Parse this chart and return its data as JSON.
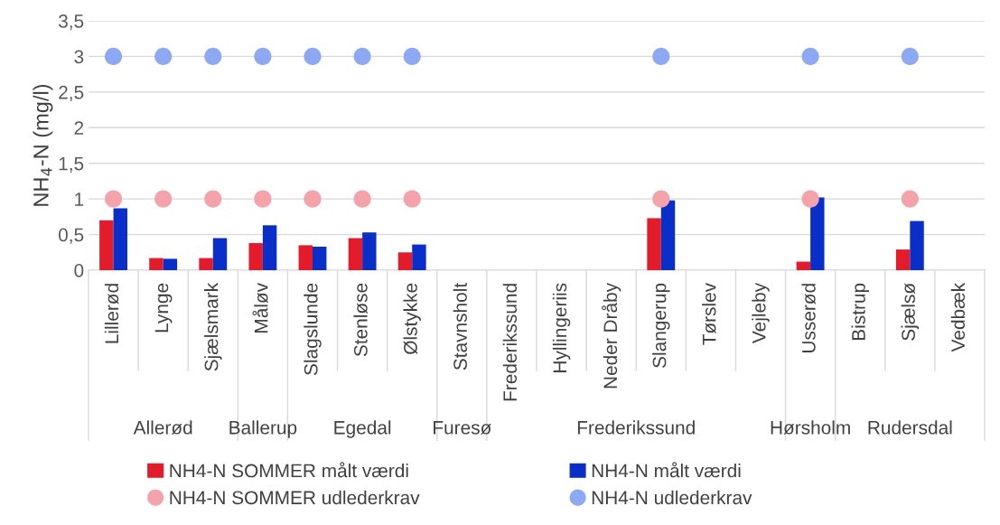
{
  "chart_data": {
    "type": "bar",
    "ylabel": "NH$_{4}$-N (mg/l)",
    "categories": [
      "Lillerød",
      "Lynge",
      "Sjælsmark",
      "Måløv",
      "Slagslunde",
      "Stenløse",
      "Ølstykke",
      "Stavnsholt",
      "Frederikssund",
      "Hyllingeriis",
      "Neder Dråby",
      "Slangerup",
      "Tørslev",
      "Vejleby",
      "Usserød",
      "Bistrup",
      "Sjælsø",
      "Vedbæk"
    ],
    "series": [
      {
        "name": "NH4-N SOMMER målt værdi",
        "color": "#e31b2b",
        "values": [
          0.7,
          0.17,
          0.17,
          0.38,
          0.35,
          0.45,
          0.25,
          null,
          null,
          null,
          null,
          0.73,
          null,
          null,
          0.12,
          null,
          0.29,
          null
        ]
      },
      {
        "name": "NH4-N målt værdi",
        "color": "#0a2fc8",
        "values": [
          0.87,
          0.16,
          0.45,
          0.63,
          0.33,
          0.53,
          0.36,
          null,
          null,
          null,
          null,
          0.98,
          null,
          null,
          1.02,
          null,
          0.69,
          null
        ]
      },
      {
        "name": "NH4-N SOMMER udlederkrav",
        "type": "scatter",
        "color": "#f4a3ab",
        "values": [
          1,
          1,
          1,
          1,
          1,
          1,
          1,
          null,
          null,
          null,
          null,
          1,
          null,
          null,
          1,
          null,
          1,
          null
        ]
      },
      {
        "name": "NH4-N udlederkrav",
        "type": "scatter",
        "color": "#8ea9f3",
        "values": [
          3,
          3,
          3,
          3,
          3,
          3,
          3,
          null,
          null,
          null,
          null,
          3,
          null,
          null,
          3,
          null,
          3,
          null
        ]
      }
    ],
    "annotations": [
      "Allerød",
      "Ballerup",
      "Egedal",
      "Furesø",
      "Frederikssund",
      "Hørsholm",
      "Rudersdal"
    ],
    "ylim": [
      0,
      3.5
    ],
    "yticks": [
      0,
      {
        "value": 0.5,
        "label": "0,5"
      },
      1,
      {
        "value": 1.5,
        "label": "1,5"
      },
      2,
      {
        "value": 2.5,
        "label": "2,5"
      },
      3,
      {
        "value": 3.5,
        "label": "3,5"
      }
    ],
    "grid": "y",
    "legend": "bottom",
    "marker": "circle"
  }
}
